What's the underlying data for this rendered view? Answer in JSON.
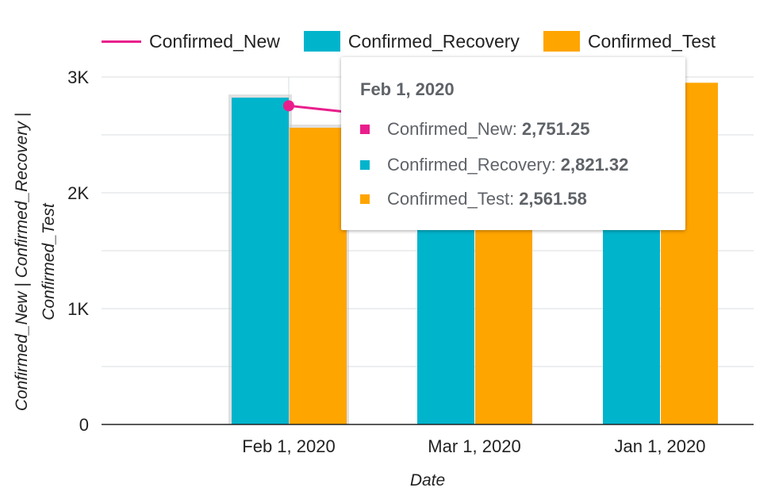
{
  "chart_data": {
    "type": "bar",
    "categories": [
      "Feb 1, 2020",
      "Mar 1, 2020",
      "Jan 1, 2020"
    ],
    "series": [
      {
        "name": "Confirmed_New",
        "type": "line",
        "color": "#e91e8c",
        "values": [
          2751.25,
          2580,
          null
        ]
      },
      {
        "name": "Confirmed_Recovery",
        "type": "bar",
        "color": "#00b4cc",
        "values": [
          2821.32,
          2500,
          2700
        ]
      },
      {
        "name": "Confirmed_Test",
        "type": "bar",
        "color": "#ffa500",
        "values": [
          2561.58,
          2400,
          2950
        ]
      }
    ],
    "xlabel": "Date",
    "ylabel": "Confirmed_New | Confirmed_Recovery | Confirmed_Test",
    "ylim": [
      0,
      3000
    ],
    "yticks": [
      {
        "value": 0,
        "label": "0"
      },
      {
        "value": 1000,
        "label": "1K"
      },
      {
        "value": 2000,
        "label": "2K"
      },
      {
        "value": 3000,
        "label": "3K"
      }
    ],
    "grid": true,
    "legend": "top"
  },
  "tooltip": {
    "title": "Feb 1, 2020",
    "rows": [
      {
        "name": "Confirmed_New: ",
        "value": "2,751.25",
        "color": "#e91e8c"
      },
      {
        "name": "Confirmed_Recovery: ",
        "value": "2,821.32",
        "color": "#00b4cc"
      },
      {
        "name": "Confirmed_Test: ",
        "value": "2,561.58",
        "color": "#ffa500"
      }
    ]
  }
}
